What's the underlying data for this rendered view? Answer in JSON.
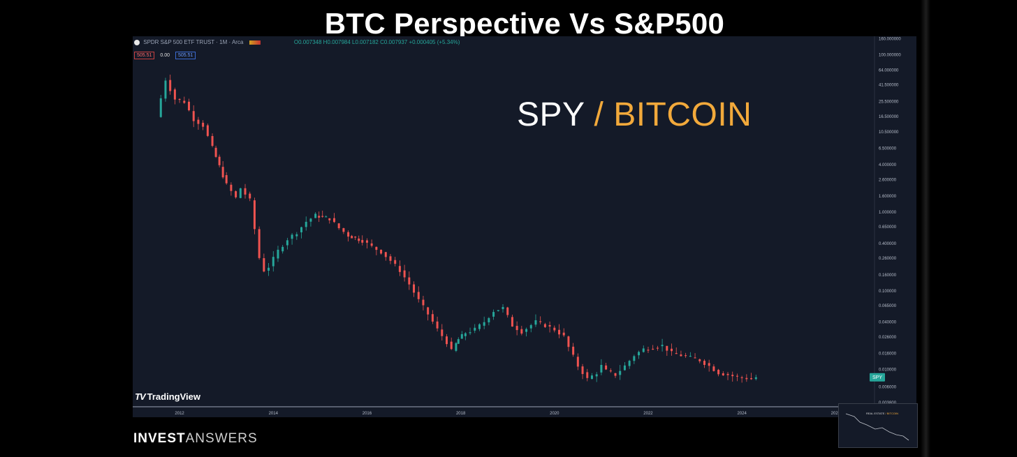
{
  "video_title": "BTC Perspective Vs S&P500",
  "legend": {
    "symbol": "SPDR S&P 500 ETF TRUST · 1M · Arca",
    "ohlc": "O0.007348 H0.007984 L0.007182 C0.007937 +0.000405 (+5.34%)"
  },
  "quote": {
    "bid": "505.51",
    "spread": "0.00",
    "ask": "505.51"
  },
  "overlay_title": {
    "left": "SPY",
    "sep": " / ",
    "right": "BITCOIN"
  },
  "watermark": "TradingView",
  "brand": {
    "bold": "INVEST",
    "light": "ANSWERS"
  },
  "thumbnail_label": {
    "left": "REAL ESTATE",
    "sep": " / ",
    "right": "BITCOIN"
  },
  "colors": {
    "up": "#26a69a",
    "down": "#ef5350",
    "background": "#141a28",
    "accent": "#f2a93b",
    "last_price_tag": "#26a69a"
  },
  "last_price_tag": "SPY",
  "chart_data": {
    "type": "line",
    "style": "candlestick",
    "title": "",
    "xlabel": "",
    "ylabel": "",
    "yscale": "log",
    "legend": "none",
    "grid": false,
    "x_ticks": [
      "2012",
      "2014",
      "2016",
      "2018",
      "2020",
      "2022",
      "2024",
      "2026"
    ],
    "y_ticks": [
      "160.000000",
      "100.000000",
      "64.000000",
      "41.500000",
      "25.500000",
      "16.500000",
      "10.500000",
      "6.500000",
      "4.000000",
      "2.600000",
      "1.600000",
      "1.000000",
      "0.650000",
      "0.400000",
      "0.260000",
      "0.160000",
      "0.100000",
      "0.065000",
      "0.040000",
      "0.026000",
      "0.016000",
      "0.010000",
      "0.006000",
      "0.003800"
    ],
    "y_tick_values": [
      160,
      100,
      64,
      41.5,
      25.5,
      16.5,
      10.5,
      6.5,
      4,
      2.6,
      1.6,
      1,
      0.65,
      0.4,
      0.26,
      0.16,
      0.1,
      0.065,
      0.04,
      0.026,
      0.016,
      0.01,
      0.006,
      0.0038
    ],
    "xlim": [
      2011.0,
      2026.8
    ],
    "ylim": [
      0.0034,
      170
    ],
    "series": [
      {
        "x": [
          2011.5,
          2011.7,
          2011.9,
          2012.1,
          2012.3,
          2012.5,
          2012.7,
          2013.0,
          2013.2,
          2013.3,
          2013.5,
          2013.7,
          2013.8,
          2013.9,
          2014.1,
          2014.3,
          2014.5,
          2014.7,
          2014.9,
          2015.2,
          2015.4,
          2015.6,
          2015.9,
          2016.1,
          2016.3,
          2016.5,
          2016.7,
          2016.9,
          2017.1,
          2017.3,
          2017.5,
          2017.7,
          2017.8,
          2017.9,
          2017.95,
          2018.1,
          2018.3,
          2018.5,
          2018.7,
          2018.9,
          2019.1,
          2019.3,
          2019.4,
          2019.6,
          2019.8,
          2020.0,
          2020.2,
          2020.3,
          2020.5,
          2020.7,
          2020.9,
          2021.0,
          2021.1,
          2021.3,
          2021.5,
          2021.7,
          2021.9,
          2022.1,
          2022.3,
          2022.5,
          2022.7,
          2022.9,
          2023.1,
          2023.3,
          2023.5,
          2023.7,
          2023.9,
          2024.1,
          2024.2,
          2024.3
        ],
        "values": [
          16.0,
          48.0,
          27.0,
          25.0,
          15.0,
          12.5,
          6.5,
          2.2,
          1.5,
          2.0,
          1.4,
          0.26,
          0.18,
          0.2,
          0.32,
          0.45,
          0.55,
          0.75,
          0.9,
          0.82,
          0.62,
          0.5,
          0.43,
          0.36,
          0.31,
          0.24,
          0.18,
          0.12,
          0.075,
          0.05,
          0.032,
          0.022,
          0.017,
          0.021,
          0.024,
          0.029,
          0.032,
          0.04,
          0.055,
          0.06,
          0.036,
          0.03,
          0.033,
          0.04,
          0.036,
          0.032,
          0.026,
          0.019,
          0.011,
          0.0075,
          0.009,
          0.011,
          0.0095,
          0.0085,
          0.011,
          0.015,
          0.018,
          0.019,
          0.02,
          0.016,
          0.015,
          0.014,
          0.013,
          0.011,
          0.009,
          0.0085,
          0.0079,
          0.0077,
          0.0075,
          0.0079
        ]
      }
    ]
  }
}
